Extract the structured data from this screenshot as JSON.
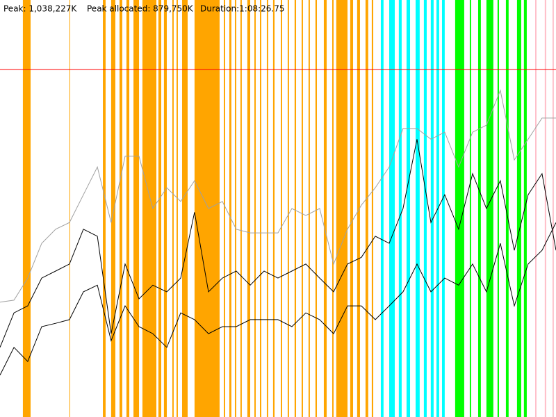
{
  "chart_data": {
    "type": "line",
    "stats": [
      "Peak allocated: 879,750K",
      "Duration:1:08:26.75"
    ],
    "peak": {
      "value": 1038227,
      "label": "Peak: 1,038,227K"
    },
    "peak_color": "#ff0000",
    "xlim": [
      0,
      4107
    ],
    "ylim": [
      0,
      1245872
    ],
    "x": [
      0,
      103,
      205,
      308,
      411,
      513,
      616,
      719,
      821,
      924,
      1027,
      1129,
      1232,
      1335,
      1437,
      1540,
      1643,
      1745,
      1848,
      1951,
      2053,
      2156,
      2259,
      2361,
      2464,
      2567,
      2669,
      2772,
      2875,
      2977,
      3080,
      3183,
      3285,
      3388,
      3491,
      3593,
      3696,
      3799,
      3901,
      4004,
      4107
    ],
    "series": [
      {
        "color": "#a0a0a0",
        "values": [
          343000,
          349000,
          415000,
          519000,
          561000,
          581000,
          664000,
          747000,
          581000,
          779000,
          779000,
          623000,
          685000,
          644000,
          706000,
          623000,
          644000,
          561000,
          550000,
          550000,
          550000,
          623000,
          602000,
          623000,
          457000,
          561000,
          633000,
          685000,
          747000,
          862000,
          862000,
          830000,
          851000,
          747000,
          851000,
          872000,
          976000,
          768000,
          830000,
          893000,
          893000
        ]
      },
      {
        "color": "#000000",
        "values": [
          208000,
          311000,
          332000,
          415000,
          436000,
          457000,
          561000,
          540000,
          249000,
          457000,
          353000,
          394000,
          374000,
          415000,
          612000,
          374000,
          415000,
          436000,
          394000,
          436000,
          415000,
          436000,
          457000,
          415000,
          374000,
          457000,
          477000,
          540000,
          519000,
          623000,
          830000,
          581000,
          664000,
          561000,
          727000,
          623000,
          706000,
          498000,
          664000,
          727000,
          498000
        ]
      },
      {
        "color": "#000000",
        "values": [
          125000,
          208000,
          166000,
          270000,
          280000,
          291000,
          374000,
          394000,
          228000,
          332000,
          270000,
          249000,
          208000,
          311000,
          291000,
          249000,
          270000,
          270000,
          291000,
          291000,
          291000,
          270000,
          311000,
          291000,
          249000,
          332000,
          332000,
          291000,
          332000,
          374000,
          457000,
          374000,
          415000,
          394000,
          457000,
          374000,
          519000,
          332000,
          457000,
          498000,
          581000
        ]
      }
    ],
    "stripes": [
      {
        "color": "#ffa500",
        "ranges": [
          [
            169,
            226
          ],
          [
            513,
            518
          ],
          [
            760,
            780
          ],
          [
            821,
            852
          ],
          [
            883,
            903
          ],
          [
            934,
            955
          ],
          [
            986,
            1027
          ],
          [
            1052,
            1155
          ],
          [
            1170,
            1191
          ],
          [
            1211,
            1232
          ],
          [
            1273,
            1283
          ],
          [
            1304,
            1314
          ],
          [
            1345,
            1386
          ],
          [
            1437,
            1622
          ],
          [
            1653,
            1663
          ],
          [
            1694,
            1709
          ],
          [
            1735,
            1745
          ],
          [
            1776,
            1786
          ],
          [
            1827,
            1848
          ],
          [
            1879,
            1889
          ],
          [
            1920,
            1930
          ],
          [
            1971,
            1981
          ],
          [
            2017,
            2028
          ],
          [
            2074,
            2084
          ],
          [
            2125,
            2135
          ],
          [
            2176,
            2187
          ],
          [
            2228,
            2238
          ],
          [
            2279,
            2289
          ],
          [
            2330,
            2341
          ],
          [
            2392,
            2413
          ],
          [
            2454,
            2464
          ],
          [
            2484,
            2567
          ],
          [
            2587,
            2608
          ],
          [
            2638,
            2659
          ],
          [
            2700,
            2720
          ],
          [
            2746,
            2757
          ]
        ]
      },
      {
        "color": "#00ffff",
        "ranges": [
          [
            2813,
            2833
          ],
          [
            2875,
            2916
          ],
          [
            2946,
            2967
          ],
          [
            3003,
            3029
          ],
          [
            3070,
            3100
          ],
          [
            3131,
            3152
          ],
          [
            3182,
            3203
          ],
          [
            3224,
            3244
          ],
          [
            3265,
            3285
          ]
        ]
      },
      {
        "color": "#00ff00",
        "ranges": [
          [
            3362,
            3429
          ],
          [
            3470,
            3480
          ],
          [
            3532,
            3552
          ],
          [
            3593,
            3644
          ],
          [
            3675,
            3686
          ],
          [
            3737,
            3757
          ],
          [
            3819,
            3850
          ],
          [
            3870,
            3891
          ]
        ]
      },
      {
        "color": "#ffc0cb",
        "ranges": [
          [
            3953,
            3963
          ],
          [
            4024,
            4035
          ],
          [
            4081,
            4091
          ]
        ]
      }
    ]
  }
}
